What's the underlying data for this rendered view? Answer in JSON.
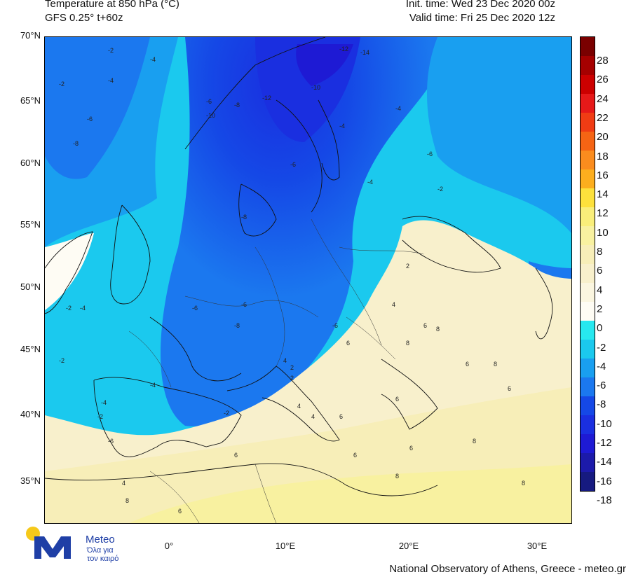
{
  "header": {
    "title": "Temperature at 850 hPa (°C)",
    "model": "GFS 0.25° t+60z",
    "init_time": "Init. time: Wed 23 Dec 2020 00z",
    "valid_time": "Valid time: Fri 25 Dec 2020 12z"
  },
  "axes": {
    "lat_labels": [
      "70°N",
      "65°N",
      "60°N",
      "55°N",
      "50°N",
      "45°N",
      "40°N",
      "35°N"
    ],
    "lon_labels": [
      "0°",
      "10°E",
      "20°E",
      "30°E"
    ]
  },
  "colorbar": {
    "labels": [
      "28",
      "26",
      "24",
      "22",
      "20",
      "18",
      "16",
      "14",
      "12",
      "10",
      "8",
      "6",
      "4",
      "2",
      "0",
      "-2",
      "-4",
      "-6",
      "-8",
      "-10",
      "-12",
      "-14",
      "-16",
      "-18"
    ],
    "colors": [
      "#7a0000",
      "#a50000",
      "#cc0000",
      "#e61919",
      "#f03c14",
      "#f56414",
      "#fa8c1e",
      "#fcae1e",
      "#fde13c",
      "#f9ee7a",
      "#f8f1a0",
      "#f7eeb8",
      "#f8f0cc",
      "#fbf6e0",
      "#fefcf4",
      "#27e8ef",
      "#1bc9ee",
      "#199ff0",
      "#1b78ef",
      "#1548e6",
      "#1a2fe0",
      "#1e1ad4",
      "#1c1aaa",
      "#161a80"
    ]
  },
  "logo": {
    "name": "Meteo",
    "tagline_1": "Όλα για",
    "tagline_2": "τον καιρό"
  },
  "footer": "National Observatory of Athens, Greece - meteo.gr",
  "contour_labels": [
    "-2",
    "-4",
    "-6",
    "-8",
    "-10",
    "-12",
    "-14",
    "-2",
    "-4",
    "-6",
    "-8",
    "-10",
    "-12",
    "-4",
    "-6",
    "-8",
    "-4",
    "-6",
    "-4",
    "-2",
    "-2",
    "-4",
    "-6",
    "-6",
    "-8",
    "-6",
    "-4",
    "-2",
    "-2",
    "-2",
    "-4",
    "-6",
    "2",
    "4",
    "6",
    "8",
    "6",
    "4",
    "2",
    "4",
    "6",
    "8",
    "6",
    "8",
    "6",
    "6",
    "4",
    "2",
    "6",
    "8",
    "8",
    "6",
    "8",
    "6",
    "4",
    "6",
    "8"
  ],
  "colors": {
    "cold": "#1548e6",
    "warm": "#f8f1a0"
  }
}
